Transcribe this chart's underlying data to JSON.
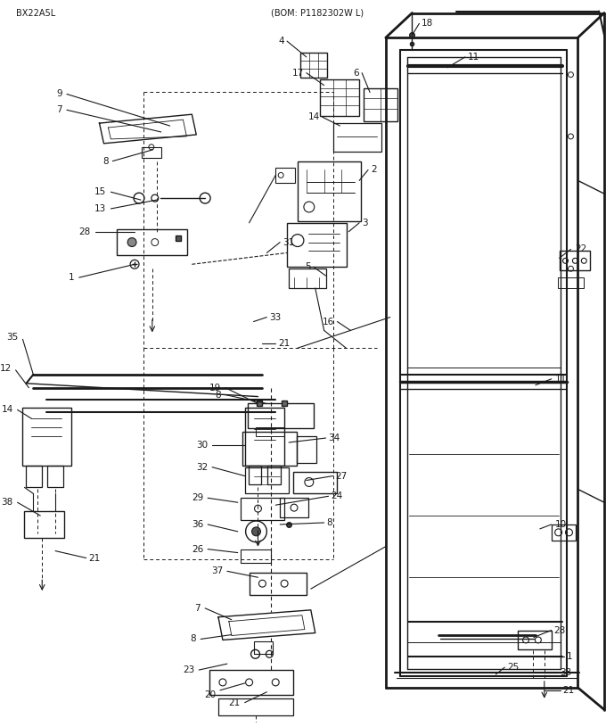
{
  "title": "BX22A5L",
  "subtitle": "(BOM: P1182302W L)",
  "bg_color": "#ffffff",
  "line_color": "#1a1a1a",
  "text_color": "#1a1a1a",
  "fig_width": 6.8,
  "fig_height": 8.15,
  "dpi": 100
}
